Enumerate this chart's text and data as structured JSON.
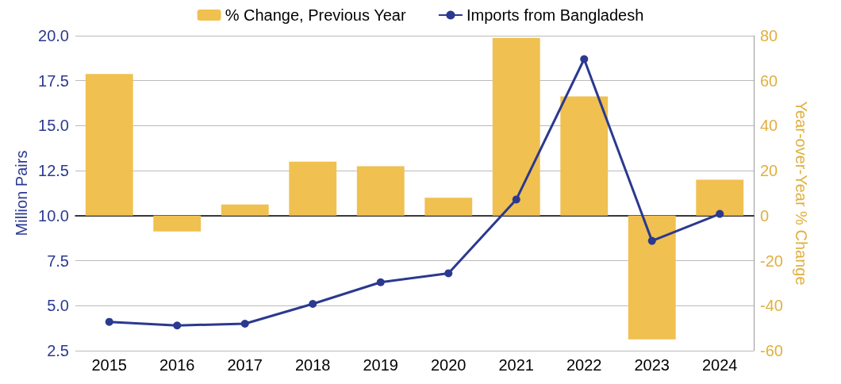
{
  "chart_data": {
    "type": "bar",
    "categories": [
      "2015",
      "2016",
      "2017",
      "2018",
      "2019",
      "2020",
      "2021",
      "2022",
      "2023",
      "2024"
    ],
    "ylabel": "Million Pairs",
    "y2label": "Year-over-Year % Change",
    "ylim": [
      2.5,
      20
    ],
    "yticks": [
      2.5,
      {
        "value": 5,
        "label": "5.0"
      },
      {
        "value": 7.5,
        "label": "7.5"
      },
      {
        "value": 10,
        "label": "10.0"
      },
      12.5,
      {
        "value": 15,
        "label": "15.0"
      },
      17.5,
      {
        "value": 20,
        "label": "20.0"
      }
    ],
    "y2lim": [
      -60,
      80
    ],
    "y2ticks": [
      -60,
      -40,
      -20,
      0,
      20,
      40,
      60,
      80
    ],
    "grid": "y",
    "legend": "top",
    "series": [
      {
        "name": "% Change, Previous Year",
        "axis": "y2",
        "color": "#f0c050",
        "values": [
          63,
          -7,
          5,
          24,
          22,
          8,
          79,
          53,
          -55,
          16
        ]
      },
      {
        "name": "Imports from Bangladesh",
        "type": "line",
        "color": "#2b3990",
        "marker": "circle",
        "values": [
          4.1,
          3.9,
          4.0,
          5.1,
          6.3,
          6.8,
          10.9,
          18.7,
          8.6,
          10.1
        ]
      }
    ]
  }
}
